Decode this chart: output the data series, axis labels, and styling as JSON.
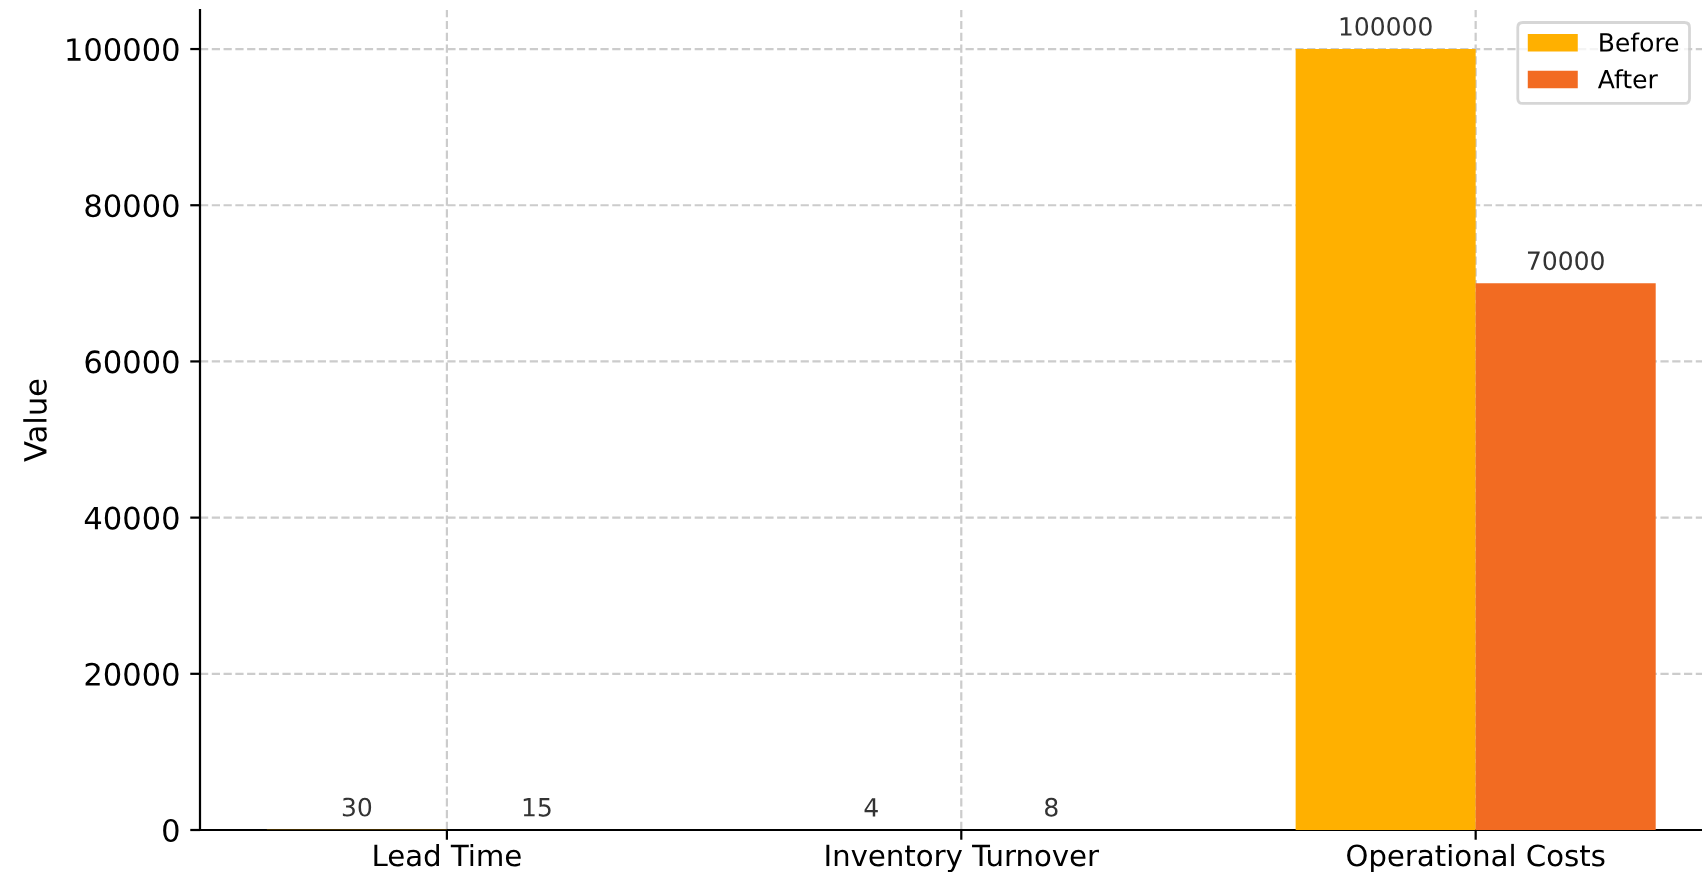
{
  "chart_data": {
    "type": "bar",
    "ylabel": "Value",
    "categories": [
      "Lead Time",
      "Inventory Turnover",
      "Operational Costs"
    ],
    "series": [
      {
        "name": "Before",
        "color": "#ffb000",
        "values": [
          30,
          4,
          100000
        ]
      },
      {
        "name": "After",
        "color": "#f26b22",
        "values": [
          15,
          8,
          70000
        ]
      }
    ],
    "ylim": [
      0,
      105000
    ],
    "yticks": [
      0,
      20000,
      40000,
      60000,
      80000,
      100000
    ],
    "grid": true,
    "legend": "top right",
    "data_labels": true
  }
}
